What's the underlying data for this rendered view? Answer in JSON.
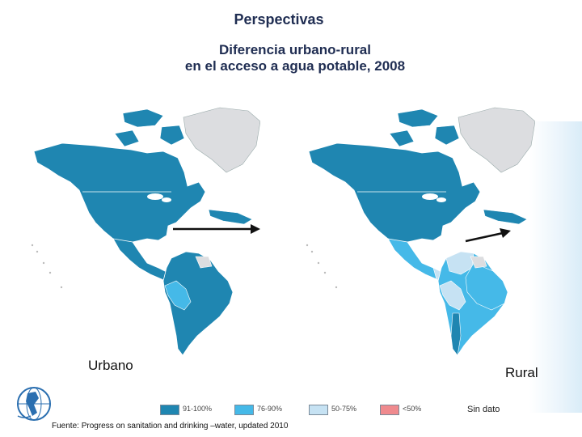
{
  "title": "Perspectivas",
  "subtitle_line1": "Diferencia urbano-rural",
  "subtitle_line2": "en el acceso a agua potable, 2008",
  "maps": {
    "left_label": "Urbano",
    "right_label": "Rural"
  },
  "legend": [
    {
      "label": "91-100%",
      "color": "#1f86b1"
    },
    {
      "label": "76-90%",
      "color": "#45b9e8"
    },
    {
      "label": "50-75%",
      "color": "#c6e2f3"
    },
    {
      "label": "<50%",
      "color": "#ef8a8e"
    }
  ],
  "sin_dato": "Sin dato",
  "source": "Fuente: Progress on sanitation and drinking –water, updated 2010",
  "colors": {
    "greenland": "#dcdde0",
    "ocean": "#ffffff",
    "title": "#1f2d52"
  }
}
